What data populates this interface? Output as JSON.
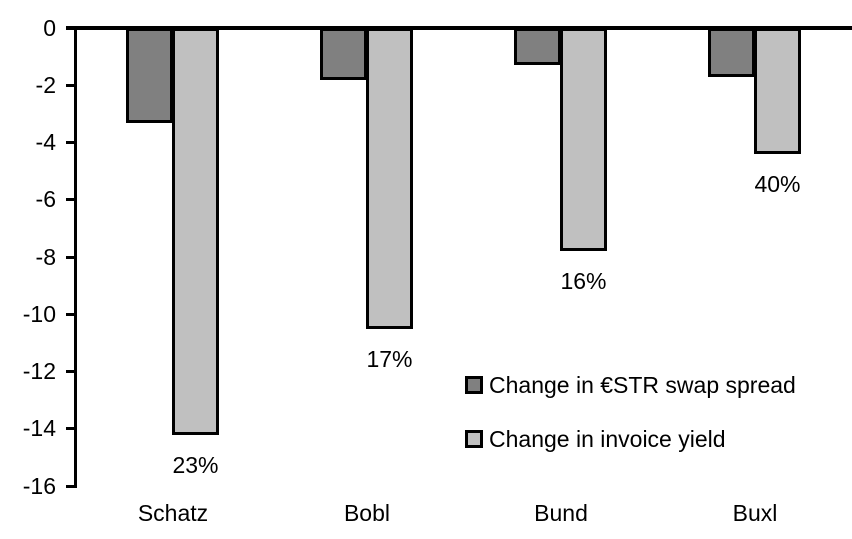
{
  "chart_data": {
    "type": "bar",
    "categories": [
      "Schatz",
      "Bobl",
      "Bund",
      "Buxl"
    ],
    "series": [
      {
        "name": "Change in €STR swap spread",
        "color": "#808080",
        "values": [
          -3.3,
          -1.8,
          -1.3,
          -1.7
        ]
      },
      {
        "name": "Change in invoice yield",
        "color": "#c0c0c0",
        "values": [
          -14.2,
          -10.5,
          -7.8,
          -4.4
        ],
        "point_labels": [
          "23%",
          "17%",
          "16%",
          "40%"
        ]
      }
    ],
    "ylim": [
      -16,
      0
    ],
    "y_ticks": [
      0,
      -2,
      -4,
      -6,
      -8,
      -10,
      -12,
      -14,
      -16
    ],
    "xlabel": "",
    "ylabel": "",
    "title": "",
    "grid": false,
    "legend_position": "inside-right",
    "axis_color": "#000000",
    "bar_border_color": "#000000",
    "background": "#ffffff"
  }
}
